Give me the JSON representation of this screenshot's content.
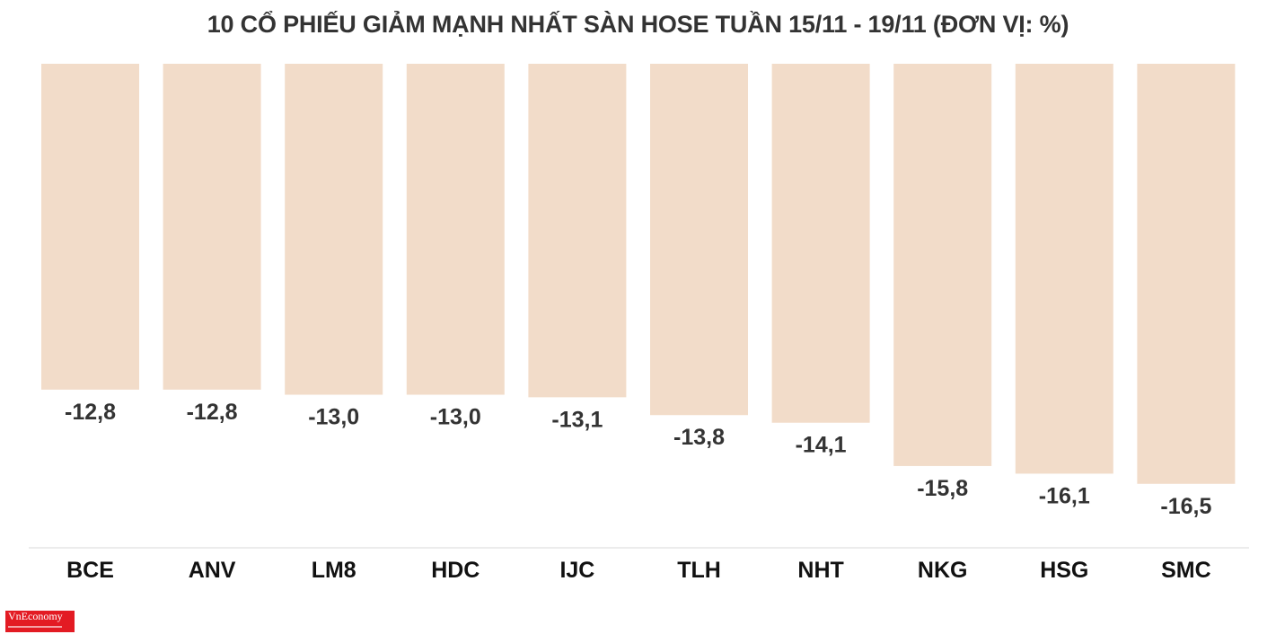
{
  "chart_data": {
    "type": "bar",
    "title": "10 CỔ PHIẾU GIẢM MẠNH NHẤT SÀN HOSE TUẦN 15/11 - 19/11 (ĐƠN VỊ: %)",
    "categories": [
      "BCE",
      "ANV",
      "LM8",
      "HDC",
      "IJC",
      "TLH",
      "NHT",
      "NKG",
      "HSG",
      "SMC"
    ],
    "values": [
      -12.8,
      -12.8,
      -13.0,
      -13.0,
      -13.1,
      -13.8,
      -14.1,
      -15.8,
      -16.1,
      -16.5
    ],
    "value_labels": [
      "-12,8",
      "-12,8",
      "-13,0",
      "-13,0",
      "-13,1",
      "-13,8",
      "-14,1",
      "-15,8",
      "-16,1",
      "-16,5"
    ],
    "bar_color": "#f2dcc9",
    "baseline_color": "#e6e6e6",
    "grid": false,
    "legend": "none"
  },
  "logo": {
    "text": "VnEconomy",
    "color": "#e31b23"
  }
}
